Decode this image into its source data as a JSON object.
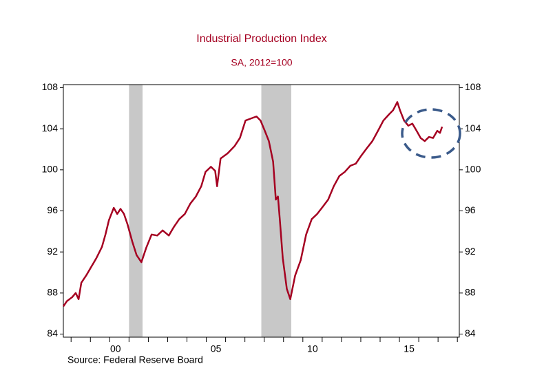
{
  "chart_data": {
    "type": "line",
    "title": "Industrial Production Index",
    "subtitle": "SA, 2012=100",
    "source": "Source:  Federal Reserve Board",
    "xlim": [
      1997.6,
      2018.1
    ],
    "ylim": [
      83.7,
      108.3
    ],
    "y2lim": [
      83.7,
      108.3
    ],
    "yticks": [
      84,
      88,
      92,
      96,
      100,
      104,
      108
    ],
    "y2ticks": [
      84,
      88,
      92,
      96,
      100,
      104,
      108
    ],
    "xticks": [
      1998,
      1999,
      2000,
      2001,
      2002,
      2003,
      2004,
      2005,
      2006,
      2007,
      2008,
      2009,
      2010,
      2011,
      2012,
      2013,
      2014,
      2015,
      2016,
      2017,
      2018
    ],
    "xtick_labels": [
      {
        "value": 2000.3,
        "label": "00"
      },
      {
        "value": 2005.5,
        "label": "05"
      },
      {
        "value": 2010.5,
        "label": "10"
      },
      {
        "value": 2015.5,
        "label": "15"
      }
    ],
    "shaded_periods": [
      [
        2001.0,
        2001.7
      ],
      [
        2007.85,
        2009.4
      ]
    ],
    "shade_color": "#c8c8c8",
    "x": [
      1997.6,
      1997.78,
      1998.06,
      1998.24,
      1998.39,
      1998.53,
      1998.78,
      1999.03,
      1999.31,
      1999.6,
      1999.78,
      1999.96,
      2000.21,
      2000.39,
      2000.56,
      2000.74,
      2000.92,
      2001.17,
      2001.39,
      2001.64,
      2001.89,
      2002.17,
      2002.46,
      2002.74,
      2003.06,
      2003.31,
      2003.6,
      2003.89,
      2004.17,
      2004.46,
      2004.74,
      2004.96,
      2005.24,
      2005.46,
      2005.56,
      2005.74,
      2006.1,
      2006.46,
      2006.74,
      2007.03,
      2007.31,
      2007.6,
      2007.81,
      2008.03,
      2008.24,
      2008.46,
      2008.6,
      2008.71,
      2008.81,
      2008.96,
      2009.17,
      2009.35,
      2009.6,
      2009.89,
      2010.17,
      2010.46,
      2010.74,
      2011.03,
      2011.31,
      2011.6,
      2011.89,
      2012.17,
      2012.46,
      2012.74,
      2013.03,
      2013.31,
      2013.6,
      2013.89,
      2014.17,
      2014.46,
      2014.67,
      2014.89,
      2015.03,
      2015.24,
      2015.46,
      2015.67,
      2015.89,
      2016.1,
      2016.31,
      2016.53,
      2016.74,
      2016.96,
      2017.1,
      2017.21
    ],
    "series": [
      {
        "name": "Industrial Production Index",
        "color": "#a50021",
        "values": [
          86.7,
          87.2,
          87.6,
          88.0,
          87.4,
          89.0,
          89.7,
          90.5,
          91.4,
          92.5,
          93.7,
          95.1,
          96.3,
          95.7,
          96.2,
          95.7,
          94.7,
          93.0,
          91.7,
          91.0,
          92.4,
          93.7,
          93.6,
          94.1,
          93.6,
          94.4,
          95.2,
          95.7,
          96.7,
          97.4,
          98.4,
          99.8,
          100.3,
          99.9,
          98.4,
          101.1,
          101.6,
          102.3,
          103.1,
          104.8,
          105.0,
          105.2,
          104.8,
          103.8,
          102.8,
          100.8,
          97.1,
          97.4,
          95.1,
          91.4,
          88.4,
          87.4,
          89.7,
          91.2,
          93.7,
          95.2,
          95.7,
          96.4,
          97.1,
          98.4,
          99.4,
          99.8,
          100.4,
          100.6,
          101.4,
          102.1,
          102.8,
          103.8,
          104.8,
          105.4,
          105.8,
          106.6,
          105.8,
          104.8,
          104.3,
          104.5,
          103.8,
          103.1,
          102.8,
          103.2,
          103.1,
          103.8,
          103.6,
          104.2
        ]
      }
    ]
  }
}
